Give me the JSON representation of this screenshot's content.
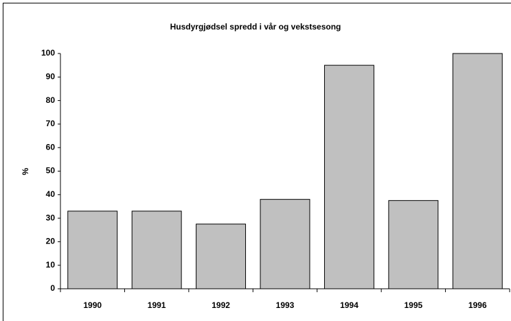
{
  "chart_data": {
    "type": "bar",
    "title": "Husdyrgjødsel spredd i vår og vekstsesong",
    "y_label": "%",
    "categories": [
      "1990",
      "1991",
      "1992",
      "1993",
      "1994",
      "1995",
      "1996"
    ],
    "values": [
      33,
      33,
      27.5,
      38,
      95,
      37.5,
      100
    ],
    "color": "#c0c0c0",
    "ylim": [
      0,
      100
    ],
    "yticks": [
      0,
      10,
      20,
      30,
      40,
      50,
      60,
      70,
      80,
      90,
      100
    ],
    "grid": false
  }
}
